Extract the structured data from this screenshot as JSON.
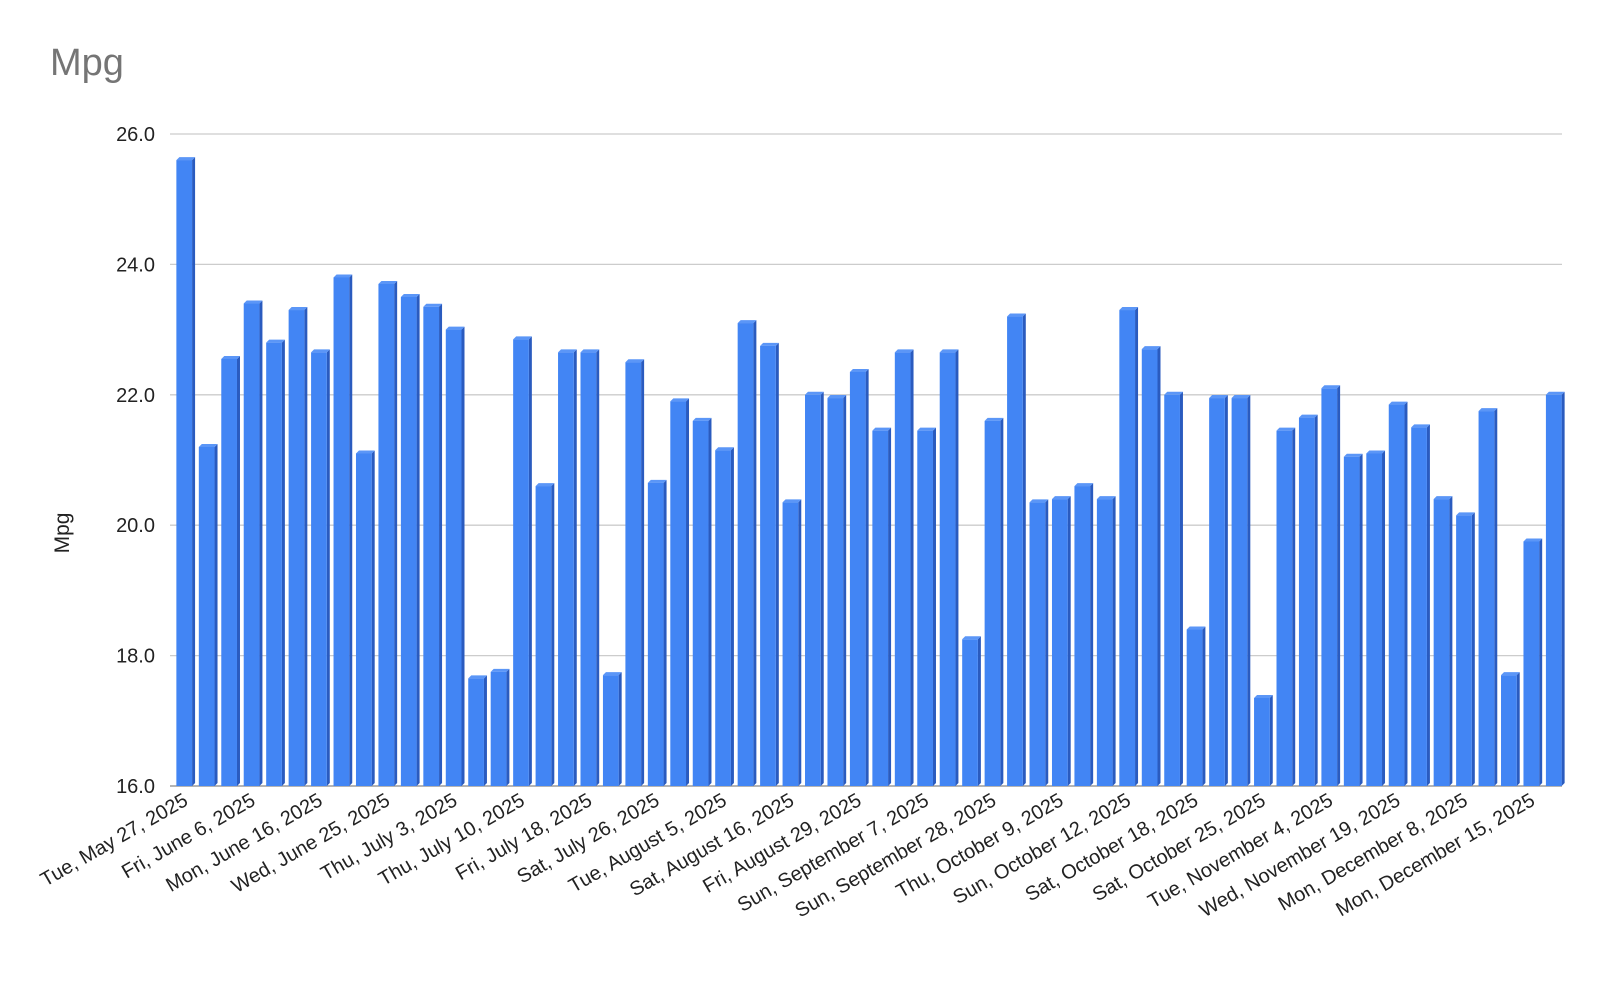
{
  "chart_data": {
    "type": "bar",
    "title": "Mpg",
    "xlabel": "",
    "ylabel": "Mpg",
    "ylim": [
      16.0,
      26.0
    ],
    "yticks": [
      "16.0",
      "18.0",
      "20.0",
      "22.0",
      "24.0",
      "26.0"
    ],
    "grid": true,
    "legend": "none",
    "colors": {
      "bar": "#4285f4",
      "bar_top": "#5b96f7",
      "bar_side": "#2a5bbf",
      "grid": "#cccccc",
      "title": "#757575"
    },
    "x_tick_labels": [
      {
        "index": 0,
        "label": "Tue, May 27, 2025"
      },
      {
        "index": 3,
        "label": "Fri, June 6, 2025"
      },
      {
        "index": 6,
        "label": "Mon, June 16, 2025"
      },
      {
        "index": 9,
        "label": "Wed, June 25, 2025"
      },
      {
        "index": 12,
        "label": "Thu, July 3, 2025"
      },
      {
        "index": 15,
        "label": "Thu, July 10, 2025"
      },
      {
        "index": 18,
        "label": "Fri, July 18, 2025"
      },
      {
        "index": 21,
        "label": "Sat, July 26, 2025"
      },
      {
        "index": 24,
        "label": "Tue, August 5, 2025"
      },
      {
        "index": 27,
        "label": "Sat, August 16, 2025"
      },
      {
        "index": 30,
        "label": "Fri, August 29, 2025"
      },
      {
        "index": 33,
        "label": "Sun, September 7, 2025"
      },
      {
        "index": 36,
        "label": "Sun, September 28, 2025"
      },
      {
        "index": 39,
        "label": "Thu, October 9, 2025"
      },
      {
        "index": 42,
        "label": "Sun, October 12, 2025"
      },
      {
        "index": 45,
        "label": "Sat, October 18, 2025"
      },
      {
        "index": 48,
        "label": "Sat, October 25, 2025"
      },
      {
        "index": 51,
        "label": "Tue, November 4, 2025"
      },
      {
        "index": 54,
        "label": "Wed, November 19, 2025"
      },
      {
        "index": 57,
        "label": "Mon, December 8, 2025"
      },
      {
        "index": 60,
        "label": "Mon, December 15, 2025"
      }
    ],
    "values": [
      25.6,
      21.2,
      22.55,
      23.4,
      22.8,
      23.3,
      22.65,
      23.8,
      21.1,
      23.7,
      23.5,
      23.35,
      23.0,
      17.65,
      17.75,
      22.85,
      20.6,
      22.65,
      22.65,
      17.7,
      22.5,
      20.65,
      21.9,
      21.6,
      21.15,
      23.1,
      22.75,
      20.35,
      22.0,
      21.95,
      22.35,
      21.45,
      22.65,
      21.45,
      22.65,
      18.25,
      21.6,
      23.2,
      20.35,
      20.4,
      20.6,
      20.4,
      23.3,
      22.7,
      22.0,
      18.4,
      21.95,
      21.95,
      17.35,
      21.45,
      21.65,
      22.1,
      21.05,
      21.1,
      21.85,
      21.5,
      20.4,
      20.15,
      21.75,
      17.7,
      19.75,
      22.0
    ]
  }
}
